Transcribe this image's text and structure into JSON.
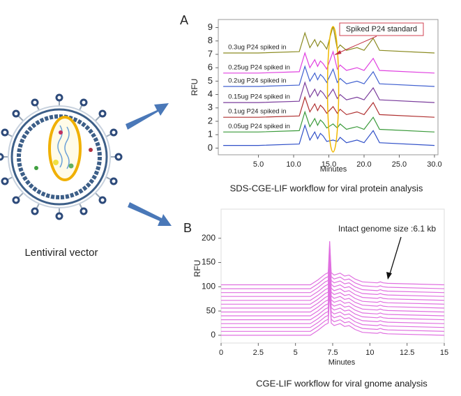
{
  "figure": {
    "vector_label": "Lentiviral vector"
  },
  "chart_data": [
    {
      "type": "line",
      "panel": "A",
      "caption": "SDS-CGE-LIF workflow for viral protein analysis",
      "x_label": "Minutes",
      "y_label": "RFU",
      "annotation": "Spiked P24 standard",
      "xlim": [
        -0.7,
        30.5
      ],
      "ylim": [
        -0.5,
        9.6
      ],
      "xticks": [
        {
          "value": 5,
          "label": "5.0"
        },
        {
          "value": 10,
          "label": "10.0"
        },
        {
          "value": 15,
          "label": "15.0"
        },
        {
          "value": 20,
          "label": "20.0"
        },
        {
          "value": 25,
          "label": "25.0"
        },
        {
          "value": 30,
          "label": "30.0"
        }
      ],
      "yticks": [
        0,
        1,
        2,
        3,
        4,
        5,
        6,
        7,
        8,
        9
      ],
      "x": [
        0,
        5,
        10.8,
        11.6,
        12.3,
        13,
        13.4,
        13.8,
        14.2,
        14.7,
        15.6,
        16.2,
        16.6,
        17.5,
        19,
        20,
        21.3,
        22.2,
        30
      ],
      "series": [
        {
          "name": null,
          "color": "#3050c8",
          "values": [
            0.2,
            0.2,
            0.3,
            1.7,
            0.6,
            1.2,
            0.7,
            1.1,
            0.9,
            0.5,
            0.6,
            0.5,
            0.8,
            0.4,
            0.6,
            0.4,
            1.3,
            0.4,
            0.2
          ]
        },
        {
          "name": "0.05ug P24 spiked in",
          "color": "#3a9a3a",
          "values": [
            1.2,
            1.2,
            1.3,
            2.7,
            1.6,
            2.2,
            1.7,
            2.1,
            1.9,
            1.5,
            1.8,
            1.5,
            1.8,
            1.4,
            1.6,
            1.4,
            2.3,
            1.4,
            1.2
          ]
        },
        {
          "name": "0.1ug P24 spiked in",
          "color": "#b03030",
          "values": [
            2.3,
            2.3,
            2.4,
            3.8,
            2.7,
            3.3,
            2.8,
            3.2,
            3.0,
            2.6,
            3.1,
            2.6,
            2.9,
            2.5,
            2.7,
            2.5,
            3.4,
            2.5,
            2.3
          ]
        },
        {
          "name": "0.15ug P24 spiked in",
          "color": "#7a3c9c",
          "values": [
            3.4,
            3.4,
            3.5,
            4.9,
            3.8,
            4.4,
            3.9,
            4.3,
            4.1,
            3.7,
            4.4,
            3.7,
            4.0,
            3.6,
            3.8,
            3.6,
            4.5,
            3.6,
            3.4
          ]
        },
        {
          "name": "0.2ug P24 spiked in",
          "color": "#4060d0",
          "values": [
            4.6,
            4.6,
            4.7,
            6.1,
            5.0,
            5.6,
            5.1,
            5.5,
            5.3,
            4.9,
            5.9,
            4.9,
            5.2,
            4.8,
            5.0,
            4.8,
            5.7,
            4.8,
            4.6
          ]
        },
        {
          "name": "0.25ug P24 spiked in",
          "color": "#e040e0",
          "values": [
            5.6,
            5.6,
            5.7,
            7.1,
            6.0,
            6.6,
            6.1,
            6.5,
            6.3,
            5.9,
            7.2,
            5.9,
            6.2,
            5.8,
            6.0,
            5.8,
            6.7,
            5.8,
            5.6
          ]
        },
        {
          "name": "0.3ug P24 spiked in",
          "color": "#8a8a20",
          "values": [
            7.1,
            7.1,
            7.2,
            8.6,
            7.5,
            8.1,
            7.6,
            8.0,
            7.8,
            7.4,
            9.1,
            7.4,
            7.7,
            7.3,
            7.5,
            7.3,
            8.2,
            7.3,
            7.1
          ]
        }
      ]
    },
    {
      "type": "stacked-traces",
      "panel": "B",
      "caption": "CGE-LIF workflow for viral gnome analysis",
      "x_label": "Minutes",
      "y_label": "RFU",
      "annotation": "Intact genome size :6.1 kb",
      "xlim": [
        0,
        15
      ],
      "ylim": [
        -16,
        260
      ],
      "xticks": [
        0,
        2.5,
        5,
        7.5,
        10,
        12.5,
        15
      ],
      "yticks": [
        0,
        50,
        100,
        150,
        200
      ],
      "x": [
        0,
        6,
        6.5,
        7,
        7.2,
        7.3,
        7.4,
        7.6,
        7.8,
        8,
        8.3,
        8.6,
        9,
        9.5,
        10.5,
        10.7,
        10.9,
        11.2,
        15
      ],
      "series": [
        {
          "name": null,
          "color": "#e070e0",
          "values": [
            0,
            0,
            10,
            22,
            25,
            90,
            25,
            20,
            22,
            24,
            18,
            20,
            12,
            6,
            4,
            6,
            4,
            3,
            0
          ]
        }
      ],
      "offsets": [
        0,
        8,
        16,
        24,
        32,
        40,
        48,
        56,
        64,
        72,
        80,
        88,
        96,
        104
      ]
    }
  ]
}
